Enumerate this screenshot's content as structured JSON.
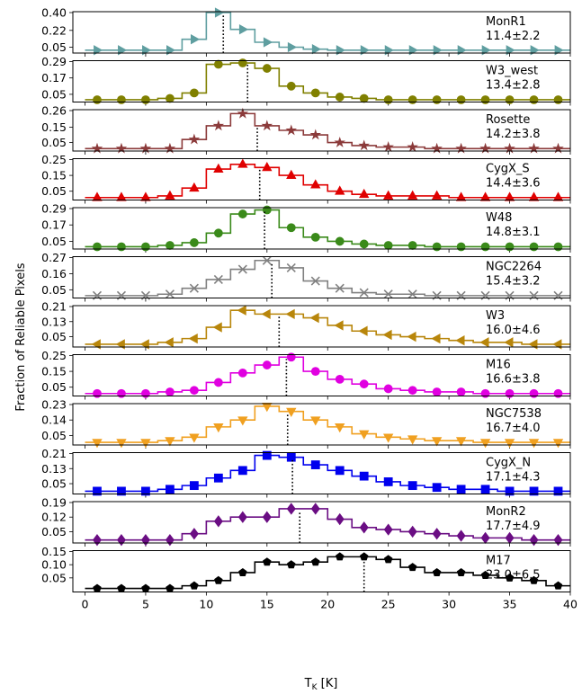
{
  "chart_data": {
    "type": "line",
    "xlabel": "T_K [K]",
    "ylabel": "Fraction of Reliable Pixels",
    "xlim": [
      -1,
      40
    ],
    "xticks": [
      0,
      5,
      10,
      15,
      20,
      25,
      30,
      35,
      40
    ],
    "x": [
      1,
      3,
      5,
      7,
      9,
      11,
      13,
      15,
      17,
      19,
      21,
      23,
      25,
      27,
      29,
      31,
      33,
      35,
      37,
      39
    ],
    "series": [
      {
        "name": "MonR1",
        "stat": "11.4±2.2",
        "color": "#5f9ea0",
        "marker": "triangle-right",
        "ylim": [
          0.0,
          0.4
        ],
        "yticks": [
          "0.40",
          "0.22",
          "0.05"
        ],
        "mean": 11.4,
        "values": [
          0.02,
          0.02,
          0.02,
          0.02,
          0.13,
          0.4,
          0.23,
          0.1,
          0.05,
          0.03,
          0.02,
          0.02,
          0.02,
          0.02,
          0.02,
          0.02,
          0.02,
          0.02,
          0.02,
          0.02
        ]
      },
      {
        "name": "W3_west",
        "stat": "13.4±2.8",
        "color": "#808000",
        "marker": "circle",
        "ylim": [
          0.0,
          0.29
        ],
        "yticks": [
          "0.29",
          "0.17",
          "0.05"
        ],
        "mean": 13.4,
        "values": [
          0.01,
          0.01,
          0.01,
          0.02,
          0.06,
          0.27,
          0.28,
          0.24,
          0.11,
          0.06,
          0.03,
          0.02,
          0.01,
          0.01,
          0.01,
          0.01,
          0.01,
          0.01,
          0.01,
          0.01
        ]
      },
      {
        "name": "Rosette",
        "stat": "14.2±3.8",
        "color": "#8b3a3a",
        "marker": "star",
        "ylim": [
          0.0,
          0.26
        ],
        "yticks": [
          "0.26",
          "0.15",
          "0.05"
        ],
        "mean": 14.2,
        "values": [
          0.01,
          0.01,
          0.01,
          0.01,
          0.07,
          0.16,
          0.24,
          0.16,
          0.13,
          0.1,
          0.05,
          0.03,
          0.02,
          0.02,
          0.01,
          0.01,
          0.01,
          0.01,
          0.01,
          0.01
        ]
      },
      {
        "name": "CygX_S",
        "stat": "14.4±3.6",
        "color": "#e00000",
        "marker": "triangle-up",
        "ylim": [
          0.0,
          0.25
        ],
        "yticks": [
          "0.25",
          "0.15",
          "0.05"
        ],
        "mean": 14.4,
        "values": [
          0.01,
          0.01,
          0.01,
          0.02,
          0.07,
          0.19,
          0.22,
          0.2,
          0.15,
          0.09,
          0.05,
          0.03,
          0.02,
          0.02,
          0.02,
          0.01,
          0.01,
          0.01,
          0.01,
          0.01
        ]
      },
      {
        "name": "W48",
        "stat": "14.8±3.1",
        "color": "#3a8a1a",
        "marker": "circle",
        "ylim": [
          0.0,
          0.29
        ],
        "yticks": [
          "0.29",
          "0.17",
          "0.05"
        ],
        "mean": 14.8,
        "values": [
          0.01,
          0.01,
          0.01,
          0.02,
          0.04,
          0.11,
          0.25,
          0.28,
          0.15,
          0.08,
          0.05,
          0.03,
          0.02,
          0.02,
          0.01,
          0.01,
          0.01,
          0.01,
          0.01,
          0.01
        ]
      },
      {
        "name": "NGC2264",
        "stat": "15.4±3.2",
        "color": "#808080",
        "marker": "x",
        "ylim": [
          0.0,
          0.27
        ],
        "yticks": [
          "0.27",
          "0.16",
          "0.05"
        ],
        "mean": 15.4,
        "values": [
          0.01,
          0.01,
          0.01,
          0.02,
          0.06,
          0.12,
          0.19,
          0.25,
          0.2,
          0.11,
          0.06,
          0.03,
          0.02,
          0.02,
          0.01,
          0.01,
          0.01,
          0.01,
          0.01,
          0.01
        ]
      },
      {
        "name": "W3",
        "stat": "16.0±4.6",
        "color": "#b8860b",
        "marker": "triangle-left",
        "ylim": [
          0.0,
          0.21
        ],
        "yticks": [
          "0.21",
          "0.13",
          "0.05"
        ],
        "mean": 16.0,
        "values": [
          0.01,
          0.01,
          0.01,
          0.02,
          0.04,
          0.1,
          0.19,
          0.17,
          0.17,
          0.15,
          0.11,
          0.08,
          0.06,
          0.05,
          0.04,
          0.03,
          0.02,
          0.02,
          0.01,
          0.01
        ]
      },
      {
        "name": "M16",
        "stat": "16.6±3.8",
        "color": "#e000e0",
        "marker": "circle",
        "ylim": [
          0.0,
          0.25
        ],
        "yticks": [
          "0.25",
          "0.15",
          "0.05"
        ],
        "mean": 16.6,
        "values": [
          0.01,
          0.01,
          0.01,
          0.02,
          0.03,
          0.08,
          0.14,
          0.19,
          0.24,
          0.15,
          0.1,
          0.07,
          0.04,
          0.03,
          0.02,
          0.02,
          0.01,
          0.01,
          0.01,
          0.01
        ]
      },
      {
        "name": "NGC7538",
        "stat": "16.7±4.0",
        "color": "#f0a020",
        "marker": "triangle-down",
        "ylim": [
          0.0,
          0.23
        ],
        "yticks": [
          "0.23",
          "0.14",
          "0.05"
        ],
        "mean": 16.7,
        "values": [
          0.01,
          0.01,
          0.01,
          0.02,
          0.04,
          0.1,
          0.14,
          0.22,
          0.19,
          0.14,
          0.1,
          0.06,
          0.04,
          0.03,
          0.02,
          0.02,
          0.01,
          0.01,
          0.01,
          0.01
        ]
      },
      {
        "name": "CygX_N",
        "stat": "17.1±4.3",
        "color": "#0000ee",
        "marker": "square",
        "ylim": [
          0.0,
          0.21
        ],
        "yticks": [
          "0.21",
          "0.13",
          "0.05"
        ],
        "mean": 17.1,
        "values": [
          0.01,
          0.01,
          0.01,
          0.02,
          0.04,
          0.08,
          0.12,
          0.2,
          0.19,
          0.15,
          0.12,
          0.09,
          0.06,
          0.04,
          0.03,
          0.02,
          0.02,
          0.01,
          0.01,
          0.01
        ]
      },
      {
        "name": "MonR2",
        "stat": "17.7±4.9",
        "color": "#6a0d83",
        "marker": "diamond",
        "ylim": [
          0.0,
          0.19
        ],
        "yticks": [
          "0.19",
          "0.12",
          "0.05"
        ],
        "mean": 17.7,
        "values": [
          0.01,
          0.01,
          0.01,
          0.01,
          0.04,
          0.1,
          0.12,
          0.12,
          0.16,
          0.16,
          0.11,
          0.07,
          0.06,
          0.05,
          0.04,
          0.03,
          0.02,
          0.02,
          0.01,
          0.01
        ]
      },
      {
        "name": "M17",
        "stat": "23.0±6.5",
        "color": "#000000",
        "marker": "pentagon",
        "ylim": [
          0.0,
          0.15
        ],
        "yticks": [
          "0.15",
          "0.10",
          "0.05"
        ],
        "mean": 23.0,
        "values": [
          0.01,
          0.01,
          0.01,
          0.01,
          0.02,
          0.04,
          0.07,
          0.11,
          0.1,
          0.11,
          0.13,
          0.13,
          0.12,
          0.09,
          0.07,
          0.07,
          0.06,
          0.05,
          0.04,
          0.02
        ]
      }
    ]
  }
}
